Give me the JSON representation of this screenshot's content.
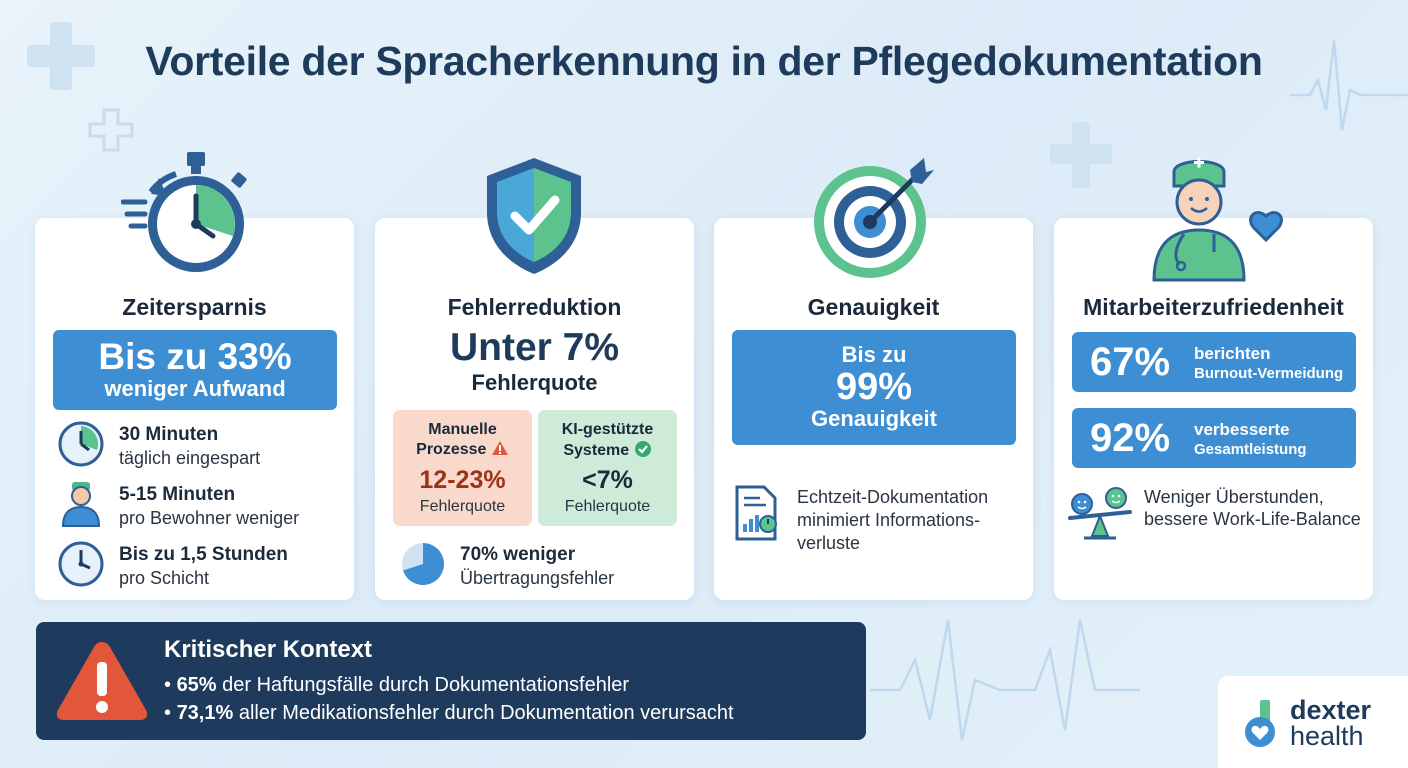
{
  "title": "Vorteile der Spracherkennung in der Pflegedokumentation",
  "colors": {
    "accent_blue": "#3d8ed3",
    "dark_navy": "#1e3a5c",
    "green": "#4bb88a",
    "warning_red": "#e2573a"
  },
  "cards": [
    {
      "title": "Zeitersparnis",
      "icon": "stopwatch-icon",
      "banner_big": "Bis zu 33%",
      "banner_small": "weniger Aufwand",
      "rows": [
        {
          "icon": "clock-icon",
          "bold": "30 Minuten",
          "text": "täglich eingespart"
        },
        {
          "icon": "nurse-icon",
          "bold": "5-15 Minuten",
          "text": "pro Bewohner weniger"
        },
        {
          "icon": "clock-icon",
          "bold": "Bis zu 1,5 Stunden",
          "text": "pro Schicht"
        }
      ]
    },
    {
      "title": "Fehlerreduktion",
      "icon": "shield-check-icon",
      "big": "Unter 7%",
      "sub": "Fehlerquote",
      "manual": {
        "label_line1": "Manuelle",
        "label_line2": "Prozesse",
        "value": "12-23%",
        "caption": "Fehlerquote"
      },
      "ai": {
        "label_line1": "KI-gestützte",
        "label_line2": "Systeme",
        "value": "<7%",
        "caption": "Fehlerquote"
      },
      "footer_bold": "70% weniger",
      "footer_text": "Übertragungsfehler",
      "pie_fraction": 0.7
    },
    {
      "title": "Genauigkeit",
      "icon": "target-icon",
      "banner_l1": "Bis zu",
      "banner_l2": "99%",
      "banner_l3": "Genauigkeit",
      "text": "Echtzeit-Dokumentation minimiert Informations-verluste"
    },
    {
      "title": "Mitarbeiterzufriedenheit",
      "icon": "nurse-heart-icon",
      "stats": [
        {
          "pct": "67%",
          "line1": "berichten",
          "line2": "Burnout-Vermeidung"
        },
        {
          "pct": "92%",
          "line1": "verbesserte",
          "line2": "Gesamtleistung"
        }
      ],
      "text": "Weniger Überstunden, bessere Work-Life-Balance"
    }
  ],
  "critical": {
    "heading": "Kritischer Kontext",
    "items": [
      {
        "bold": "65%",
        "text": " der Haftungsfälle durch Dokumentationsfehler"
      },
      {
        "bold": "73,1%",
        "text": " aller Medikationsfehler durch Dokumentation verursacht"
      }
    ]
  },
  "logo": {
    "word1": "dexter",
    "word2": "health"
  }
}
